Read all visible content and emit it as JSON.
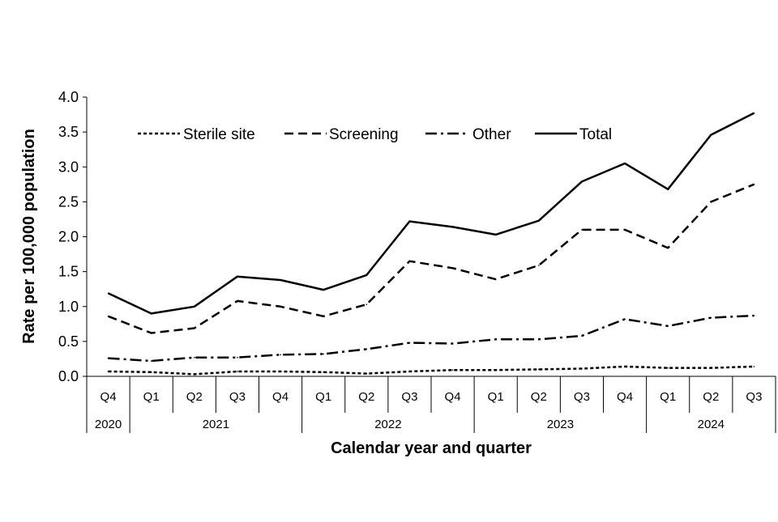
{
  "chart_data": {
    "type": "line",
    "title": "",
    "ylabel": "Rate per 100,000 population",
    "xlabel": "Calendar year and quarter",
    "ylim": [
      0,
      4.0
    ],
    "yticks": [
      "0.0",
      "0.5",
      "1.0",
      "1.5",
      "2.0",
      "2.5",
      "3.0",
      "3.5",
      "4.0"
    ],
    "categories": [
      "Q4",
      "Q1",
      "Q2",
      "Q3",
      "Q4",
      "Q1",
      "Q2",
      "Q3",
      "Q4",
      "Q1",
      "Q2",
      "Q3",
      "Q4",
      "Q1",
      "Q2",
      "Q3"
    ],
    "years": [
      {
        "label": "2020",
        "quarters": 1
      },
      {
        "label": "2021",
        "quarters": 4
      },
      {
        "label": "2022",
        "quarters": 4
      },
      {
        "label": "2023",
        "quarters": 4
      },
      {
        "label": "2024",
        "quarters": 3
      }
    ],
    "legend_position": "top",
    "grid": false,
    "series": [
      {
        "name": "Sterile site",
        "dash": "4,3",
        "values": [
          0.07,
          0.06,
          0.03,
          0.07,
          0.07,
          0.06,
          0.04,
          0.07,
          0.09,
          0.09,
          0.1,
          0.11,
          0.14,
          0.12,
          0.12,
          0.14
        ]
      },
      {
        "name": "Screening",
        "dash": "11,6",
        "values": [
          0.86,
          0.62,
          0.69,
          1.08,
          1.0,
          0.86,
          1.03,
          1.65,
          1.55,
          1.39,
          1.59,
          2.1,
          2.1,
          1.84,
          2.5,
          2.75
        ]
      },
      {
        "name": "Other",
        "dash": "14,5,3,5",
        "values": [
          0.26,
          0.22,
          0.27,
          0.27,
          0.31,
          0.32,
          0.39,
          0.48,
          0.47,
          0.53,
          0.53,
          0.58,
          0.82,
          0.72,
          0.84,
          0.87
        ]
      },
      {
        "name": "Total",
        "dash": "",
        "values": [
          1.19,
          0.9,
          1.0,
          1.43,
          1.38,
          1.24,
          1.45,
          2.22,
          2.14,
          2.03,
          2.23,
          2.79,
          3.05,
          2.68,
          3.46,
          3.77
        ]
      }
    ]
  }
}
